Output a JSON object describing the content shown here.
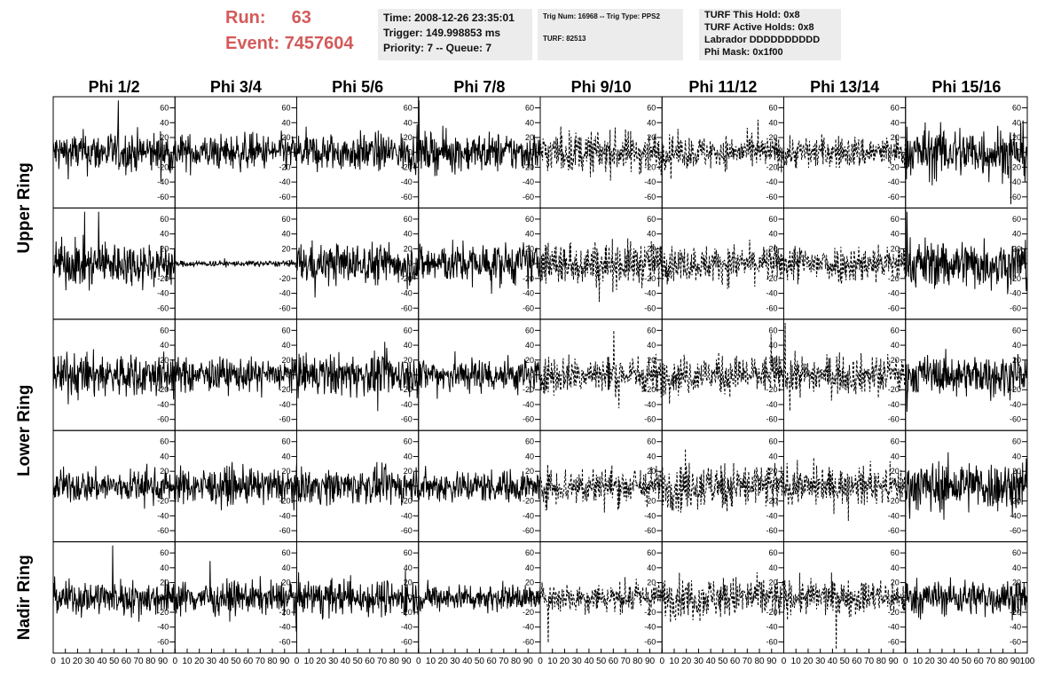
{
  "header": {
    "run_label": "Run:",
    "run_value": "63",
    "event_label": "Event:",
    "event_value": "7457604",
    "time": "Time: 2008-12-26 23:35:01",
    "trigger": "Trigger: 149.998853 ms",
    "priority": "Priority: 7 -- Queue: 7",
    "trig_num": "Trig Num: 16968 -- Trig Type: PPS2",
    "turf": "TURF: 82513",
    "turf_this_hold": "TURF This Hold: 0x8",
    "turf_active_holds": "TURF Active Holds: 0x8",
    "labrador": "Labrador DDDDDDDDDD",
    "phi_mask": "Phi Mask: 0x1f00"
  },
  "chart_data": {
    "type": "line",
    "columns": [
      "Phi 1/2",
      "Phi 3/4",
      "Phi 5/6",
      "Phi 7/8",
      "Phi 9/10",
      "Phi 11/12",
      "Phi 13/14",
      "Phi 15/16"
    ],
    "rows": [
      "Upper Ring",
      "Lower Ring",
      "Nadir Ring"
    ],
    "panel_rows": 5,
    "ylim": [
      -75,
      75
    ],
    "xlim": [
      0,
      100
    ],
    "yticks": [
      "60",
      "40",
      "20",
      "0",
      "-20",
      "-40",
      "-60"
    ],
    "ytick_values": [
      60,
      40,
      20,
      0,
      -20,
      -40,
      -60
    ],
    "xticks": [
      "0",
      "10",
      "20",
      "30",
      "40",
      "50",
      "60",
      "70",
      "80",
      "90",
      "100"
    ],
    "xtick_values": [
      0,
      10,
      20,
      30,
      40,
      50,
      60,
      70,
      80,
      90,
      100
    ],
    "dashed_columns": [
      4,
      5,
      6
    ],
    "panel_amplitude": [
      [
        14,
        12,
        13,
        13,
        14,
        11,
        11,
        18
      ],
      [
        15,
        2,
        14,
        14,
        15,
        12,
        13,
        17
      ],
      [
        15,
        11,
        14,
        12,
        13,
        13,
        13,
        13
      ],
      [
        11,
        12,
        12,
        11,
        13,
        16,
        12,
        17
      ],
      [
        12,
        11,
        12,
        9,
        10,
        14,
        12,
        12
      ]
    ],
    "grid": false
  }
}
